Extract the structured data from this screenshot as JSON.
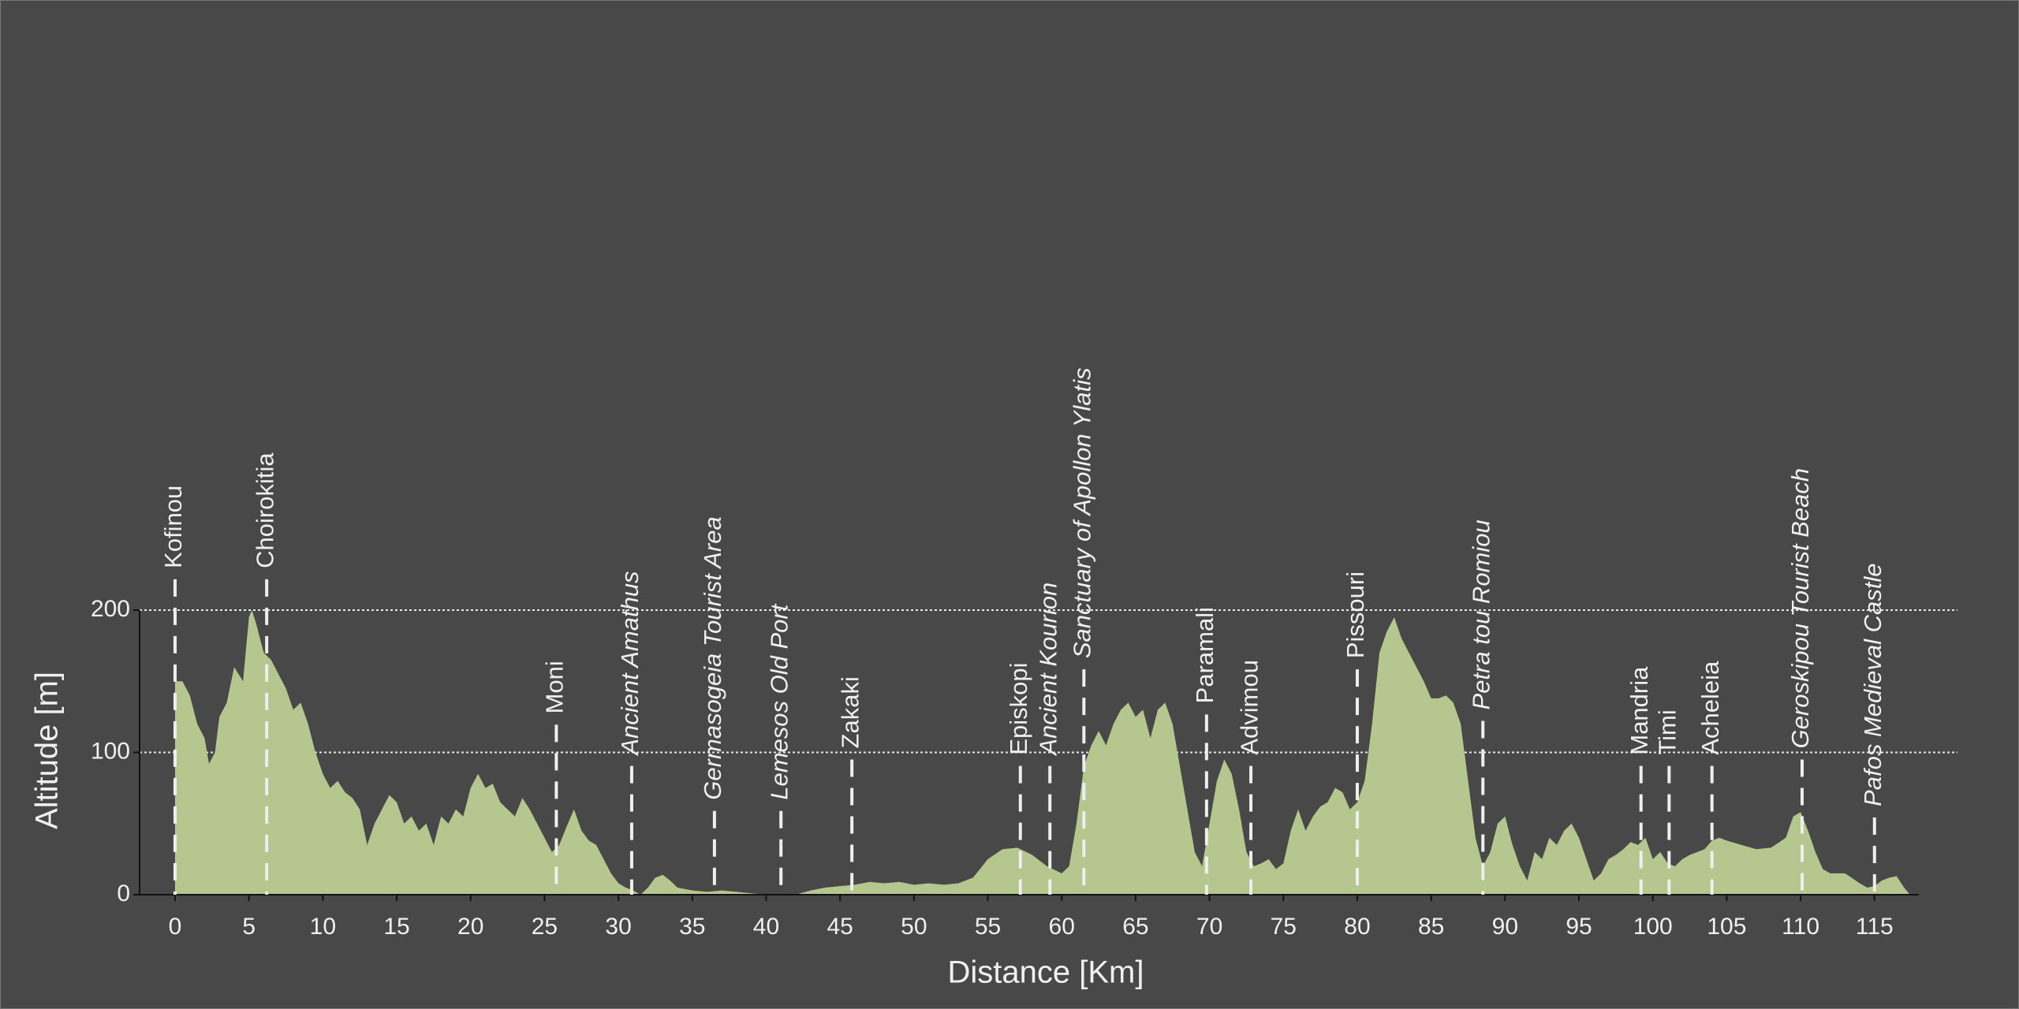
{
  "chart_data": {
    "type": "area",
    "xlabel": "Distance [Km]",
    "ylabel": "Altitude [m]",
    "color": "#b5c68f",
    "xlim": [
      -2.4,
      118
    ],
    "ylim": [
      0,
      200
    ],
    "xticks": [
      0,
      5,
      10,
      15,
      20,
      25,
      30,
      35,
      40,
      45,
      50,
      55,
      60,
      65,
      70,
      75,
      80,
      85,
      90,
      95,
      100,
      105,
      110,
      115
    ],
    "yticks": [
      0,
      100,
      200
    ],
    "grid": true,
    "x": [
      0,
      0.5,
      1,
      1.5,
      2,
      2.3,
      2.7,
      3,
      3.5,
      4,
      4.3,
      4.6,
      5,
      5.2,
      5.5,
      6,
      6.5,
      7,
      7.5,
      8,
      8.5,
      9,
      9.5,
      10,
      10.5,
      11,
      11.5,
      12,
      12.5,
      13,
      13.5,
      14,
      14.5,
      15,
      15.5,
      16,
      16.5,
      17,
      17.5,
      18,
      18.5,
      19,
      19.5,
      20,
      20.5,
      21,
      21.5,
      22,
      22.5,
      23,
      23.5,
      24,
      24.5,
      25,
      25.5,
      26,
      26.5,
      27,
      27.5,
      28,
      28.5,
      29,
      29.5,
      30,
      30.5,
      31,
      31.5,
      32,
      32.5,
      33,
      33.5,
      34,
      35,
      36,
      37,
      38,
      39,
      40,
      41,
      42,
      43,
      44,
      45,
      46,
      47,
      48,
      49,
      50,
      51,
      52,
      53,
      54,
      55,
      56,
      57,
      58,
      59,
      60,
      60.5,
      61,
      61.5,
      62,
      62.5,
      63,
      63.5,
      64,
      64.5,
      65,
      65.5,
      66,
      66.5,
      67,
      67.5,
      68,
      68.5,
      69,
      69.5,
      70,
      70.5,
      71,
      71.5,
      72,
      72.5,
      73,
      73.5,
      74,
      74.5,
      75,
      75.5,
      76,
      76.5,
      77,
      77.5,
      78,
      78.5,
      79,
      79.5,
      80,
      80.5,
      81,
      81.5,
      82,
      82.5,
      83,
      83.5,
      84,
      84.5,
      85,
      85.5,
      86,
      86.5,
      87,
      87.5,
      88,
      88.5,
      89,
      89.5,
      90,
      90.5,
      91,
      91.5,
      92,
      92.5,
      93,
      93.5,
      94,
      94.5,
      95,
      95.5,
      96,
      96.5,
      97,
      97.5,
      98,
      98.5,
      99,
      99.5,
      100,
      100.5,
      101,
      101.5,
      102,
      102.5,
      103,
      103.5,
      104,
      104.5,
      105,
      106,
      107,
      108,
      109,
      109.5,
      110,
      110.5,
      111,
      111.5,
      112,
      113,
      114,
      114.5,
      115,
      115.5,
      116,
      116.5,
      117,
      117.4
    ],
    "values": [
      150,
      150,
      140,
      120,
      110,
      92,
      100,
      125,
      135,
      160,
      155,
      150,
      195,
      200,
      190,
      170,
      165,
      155,
      145,
      130,
      135,
      120,
      100,
      85,
      75,
      80,
      72,
      68,
      60,
      35,
      50,
      60,
      70,
      65,
      50,
      55,
      45,
      50,
      35,
      55,
      50,
      60,
      55,
      75,
      85,
      75,
      78,
      65,
      60,
      55,
      68,
      60,
      50,
      40,
      30,
      35,
      48,
      60,
      45,
      38,
      35,
      25,
      15,
      8,
      5,
      3,
      0,
      5,
      12,
      14,
      10,
      5,
      3,
      2,
      3,
      2,
      1,
      0,
      0,
      0,
      3,
      5,
      6,
      7,
      9,
      8,
      9,
      7,
      8,
      7,
      8,
      12,
      25,
      32,
      33,
      28,
      20,
      15,
      20,
      50,
      90,
      105,
      115,
      105,
      120,
      130,
      135,
      125,
      130,
      110,
      130,
      135,
      120,
      90,
      60,
      30,
      20,
      50,
      80,
      95,
      85,
      60,
      30,
      20,
      22,
      25,
      18,
      22,
      45,
      60,
      45,
      55,
      62,
      65,
      75,
      72,
      60,
      65,
      80,
      120,
      170,
      185,
      195,
      180,
      170,
      160,
      150,
      138,
      138,
      140,
      135,
      120,
      80,
      40,
      20,
      30,
      50,
      55,
      35,
      20,
      10,
      30,
      25,
      40,
      35,
      45,
      50,
      40,
      25,
      10,
      15,
      25,
      28,
      32,
      37,
      35,
      40,
      25,
      30,
      22,
      20,
      25,
      28,
      30,
      32,
      38,
      40,
      38,
      35,
      32,
      33,
      40,
      55,
      58,
      45,
      30,
      18,
      15,
      15,
      8,
      5,
      6,
      10,
      12,
      13,
      5,
      0
    ],
    "markers": [
      {
        "label": "Kofinou",
        "x": 0,
        "italic": false
      },
      {
        "label": "Choirokitia",
        "x": 6.2,
        "italic": false
      },
      {
        "label": "Moni",
        "x": 25.8,
        "italic": false
      },
      {
        "label": "Ancient Amathus",
        "x": 30.9,
        "italic": true
      },
      {
        "label": "Germasogeia Tourist Area",
        "x": 36.5,
        "italic": true
      },
      {
        "label": "Lemesos Old Port",
        "x": 41,
        "italic": true
      },
      {
        "label": "Zakaki",
        "x": 45.8,
        "italic": false
      },
      {
        "label": "Episkopi",
        "x": 57.2,
        "italic": false
      },
      {
        "label": "Ancient Kourion",
        "x": 59.2,
        "italic": true
      },
      {
        "label": "Sanctuary of Apollon Ylatis",
        "x": 61.5,
        "italic": true
      },
      {
        "label": "Paramali",
        "x": 69.8,
        "italic": false
      },
      {
        "label": "Advimou",
        "x": 72.8,
        "italic": false
      },
      {
        "label": "Pissouri",
        "x": 80,
        "italic": false
      },
      {
        "label": "Petra tou Romiou",
        "x": 88.5,
        "italic": true
      },
      {
        "label": "Mandria",
        "x": 99.2,
        "italic": false
      },
      {
        "label": "Timi",
        "x": 101.1,
        "italic": false
      },
      {
        "label": "Acheleia",
        "x": 104,
        "italic": false
      },
      {
        "label": "Geroskipou Tourist Beach",
        "x": 110.1,
        "italic": true
      },
      {
        "label": "Pafos Medieval Castle",
        "x": 115,
        "italic": true
      }
    ]
  }
}
